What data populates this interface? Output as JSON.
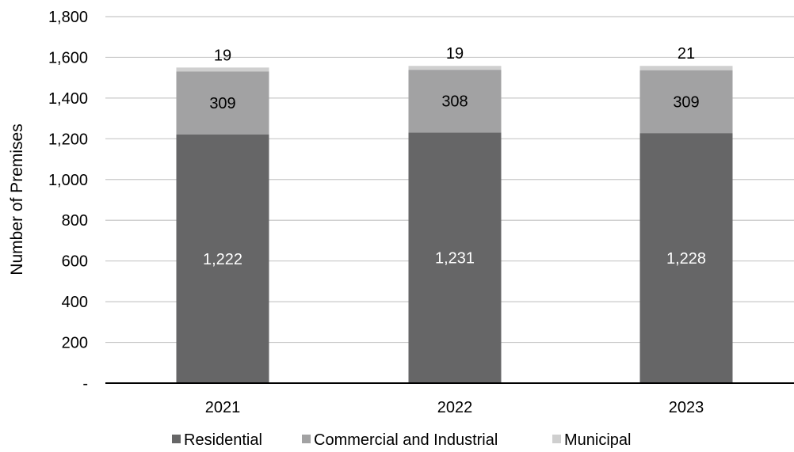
{
  "chart_data": {
    "type": "bar",
    "stacked": true,
    "categories": [
      "2021",
      "2022",
      "2023"
    ],
    "series": [
      {
        "name": "Residential",
        "values": [
          1222,
          1231,
          1228
        ],
        "color": "#666667",
        "label_color": "#ffffff"
      },
      {
        "name": "Commercial and Industrial",
        "values": [
          309,
          308,
          309
        ],
        "color": "#a2a2a3",
        "label_color": "#000000"
      },
      {
        "name": "Municipal",
        "values": [
          19,
          19,
          21
        ],
        "color": "#cfcfcf",
        "label_color": "#000000"
      }
    ],
    "value_labels": [
      [
        "1,222",
        "1,231",
        "1,228"
      ],
      [
        "309",
        "308",
        "309"
      ],
      [
        "19",
        "19",
        "21"
      ]
    ],
    "ylabel": "Number of Premises",
    "ylim": [
      0,
      1800
    ],
    "yticks": [
      0,
      200,
      400,
      600,
      800,
      1000,
      1200,
      1400,
      1600,
      1800
    ],
    "ytick_labels": [
      "-",
      "200",
      "400",
      "600",
      "800",
      "1,000",
      "1,200",
      "1,400",
      "1,600",
      "1,800"
    ],
    "grid": true,
    "legend_position": "bottom"
  }
}
